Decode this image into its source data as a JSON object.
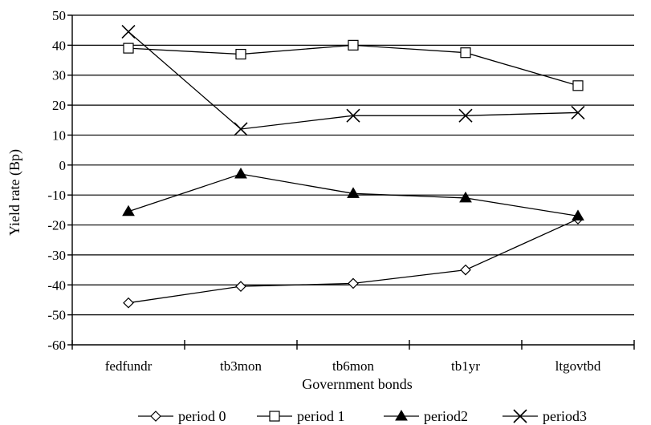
{
  "chart_data": {
    "type": "line",
    "title": "",
    "xlabel": "Government bonds",
    "ylabel": "Yield rate (Bp)",
    "categories": [
      "fedfundr",
      "tb3mon",
      "tb6mon",
      "tb1yr",
      "ltgovtbd"
    ],
    "ylim": [
      -60,
      50
    ],
    "yticks": [
      50,
      40,
      30,
      20,
      10,
      0,
      -10,
      -20,
      -30,
      -40,
      -50,
      -60
    ],
    "grid": true,
    "legend": "bottom",
    "series": [
      {
        "name": "period 0",
        "marker": "diamond-open",
        "values": [
          -46,
          -40.5,
          -39.5,
          -35,
          -18
        ]
      },
      {
        "name": "period 1",
        "marker": "square-open",
        "values": [
          39,
          37,
          40,
          37.5,
          26.5
        ]
      },
      {
        "name": "period2",
        "marker": "triangle-filled",
        "values": [
          -15.5,
          -3,
          -9.5,
          -11,
          -17
        ]
      },
      {
        "name": "period3",
        "marker": "x",
        "values": [
          44.5,
          12,
          16.5,
          16.5,
          17.5
        ]
      }
    ]
  }
}
